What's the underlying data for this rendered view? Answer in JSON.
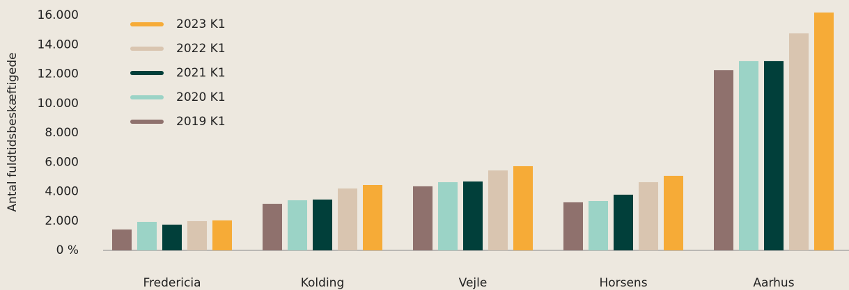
{
  "chart_data": {
    "type": "bar",
    "y_label": "Antal fuldtidsbeskæftigede",
    "categories": [
      "Fredericia",
      "Kolding",
      "Vejle",
      "Horsens",
      "Aarhus"
    ],
    "series": [
      {
        "name": "2019 K1",
        "color": "#8f716d",
        "values": [
          1420,
          3170,
          4360,
          3270,
          12260
        ]
      },
      {
        "name": "2020 K1",
        "color": "#9bd3c6",
        "values": [
          1940,
          3410,
          4640,
          3360,
          12880
        ]
      },
      {
        "name": "2021 K1",
        "color": "#013f3a",
        "values": [
          1750,
          3460,
          4690,
          3790,
          12880
        ]
      },
      {
        "name": "2022 K1",
        "color": "#d9c5b0",
        "values": [
          1990,
          4210,
          5440,
          4640,
          14770
        ]
      },
      {
        "name": "2023 K1",
        "color": "#f6ab37",
        "values": [
          2040,
          4450,
          5730,
          5070,
          16190
        ]
      }
    ],
    "ylim": [
      0,
      16200
    ],
    "yticks": [
      {
        "value": 0,
        "label": "0 %"
      },
      {
        "value": 2000,
        "label": "2.000"
      },
      {
        "value": 4000,
        "label": "4.000"
      },
      {
        "value": 6000,
        "label": "6.000"
      },
      {
        "value": 8000,
        "label": "8.000"
      },
      {
        "value": 10000,
        "label": "10.000"
      },
      {
        "value": 12000,
        "label": "12.000"
      },
      {
        "value": 14000,
        "label": "14.000"
      },
      {
        "value": 16000,
        "label": "16.000"
      }
    ],
    "grid": false,
    "legend": "upper left"
  }
}
